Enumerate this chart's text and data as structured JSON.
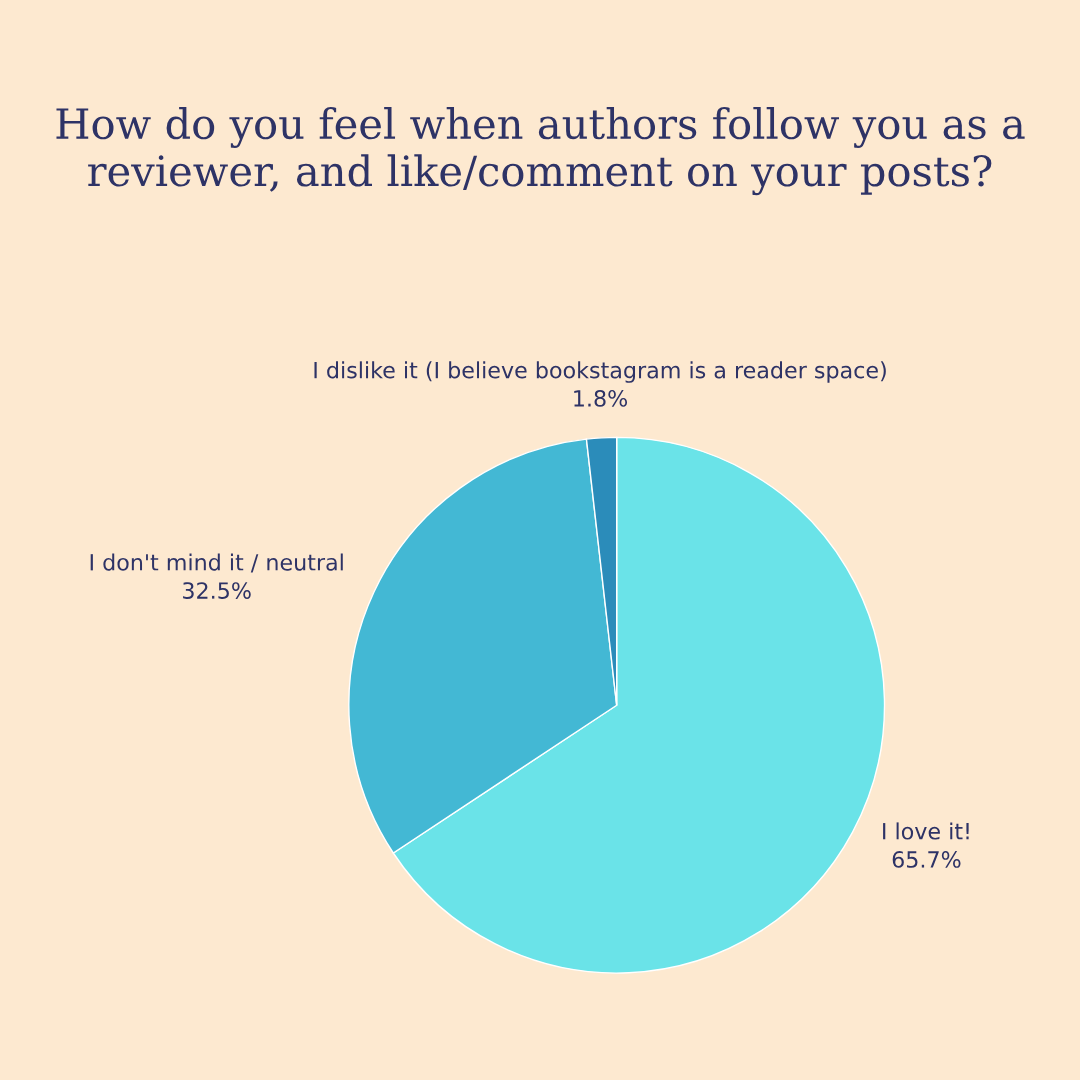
{
  "chart_data": {
    "type": "pie",
    "title": "How do you feel when authors follow you as a reviewer, and like/comment on your posts?",
    "categories": [
      "I love it!",
      "I don't mind it / neutral",
      "I dislike it (I believe bookstagram is a reader space)"
    ],
    "values": [
      65.7,
      32.5,
      1.8
    ],
    "value_labels": [
      "65.7%",
      "32.5%",
      "1.8%"
    ],
    "colors": [
      "#6ae3e8",
      "#43b8d4",
      "#2b8cba"
    ],
    "legend": false
  }
}
